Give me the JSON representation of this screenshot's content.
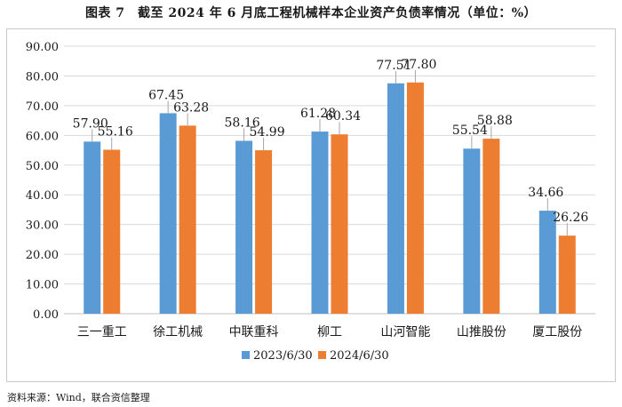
{
  "figure": {
    "title": "图表 7　截至 2024 年 6 月底工程机械样本企业资产负债率情况（单位：%）",
    "source": "资料来源：Wind，联合资信整理"
  },
  "colors": {
    "series1": "#5B9BD5",
    "series2": "#ED7D31",
    "grid": "#d9d9d9",
    "text": "#1a1a1a"
  },
  "chart_data": {
    "type": "bar",
    "title": "截至 2024 年 6 月底工程机械样本企业资产负债率情况（单位：%）",
    "xlabel": "",
    "ylabel": "",
    "ylim": [
      0,
      90
    ],
    "yticks": [
      "0.00",
      "10.00",
      "20.00",
      "30.00",
      "40.00",
      "50.00",
      "60.00",
      "70.00",
      "80.00",
      "90.00"
    ],
    "grid": true,
    "legend_position": "bottom",
    "categories": [
      "三一重工",
      "徐工机械",
      "中联重科",
      "柳工",
      "山河智能",
      "山推股份",
      "厦工股份"
    ],
    "series": [
      {
        "name": "2023/6/30",
        "values": [
          57.9,
          67.45,
          58.16,
          61.28,
          77.51,
          55.54,
          34.66
        ],
        "labels": [
          "57.90",
          "67.45",
          "58.16",
          "61.28",
          "77.51",
          "55.54",
          "34.66"
        ]
      },
      {
        "name": "2024/6/30",
        "values": [
          55.16,
          63.28,
          54.99,
          60.34,
          77.8,
          58.88,
          26.26
        ],
        "labels": [
          "55.16",
          "63.28",
          "54.99",
          "60.34",
          "77.80",
          "58.88",
          "26.26"
        ]
      }
    ]
  }
}
